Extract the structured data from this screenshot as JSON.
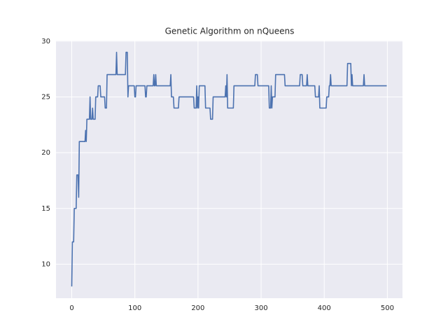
{
  "chart_data": {
    "type": "line",
    "title": "Genetic Algorithm on nQueens",
    "x": [
      0,
      1,
      3,
      4,
      7,
      8,
      10,
      11,
      12,
      21,
      22,
      23,
      24,
      28,
      29,
      30,
      32,
      33,
      34,
      37,
      38,
      41,
      42,
      45,
      46,
      52,
      53,
      55,
      56,
      70,
      71,
      72,
      85,
      86,
      88,
      89,
      90,
      99,
      100,
      101,
      102,
      116,
      117,
      118,
      119,
      129,
      130,
      131,
      132,
      133,
      134,
      156,
      157,
      158,
      161,
      162,
      169,
      170,
      193,
      194,
      197,
      198,
      199,
      200,
      201,
      202,
      211,
      212,
      219,
      220,
      223,
      224,
      243,
      244,
      245,
      246,
      247,
      256,
      257,
      290,
      291,
      294,
      295,
      312,
      313,
      315,
      316,
      317,
      318,
      322,
      323,
      337,
      338,
      361,
      362,
      365,
      366,
      372,
      373,
      374,
      385,
      386,
      391,
      392,
      393,
      403,
      404,
      407,
      408,
      409,
      410,
      411,
      436,
      437,
      442,
      443,
      444,
      445,
      462,
      463,
      464,
      499
    ],
    "values": [
      8,
      12,
      12,
      15,
      15,
      18,
      18,
      16,
      21,
      21,
      22,
      21,
      23,
      23,
      25,
      23,
      23,
      24,
      23,
      23,
      25,
      25,
      26,
      26,
      25,
      25,
      24,
      24,
      27,
      27,
      29,
      27,
      27,
      29,
      29,
      25,
      26,
      26,
      25,
      25,
      26,
      26,
      25,
      25,
      26,
      26,
      27,
      26,
      26,
      27,
      26,
      26,
      27,
      25,
      25,
      24,
      24,
      25,
      25,
      24,
      24,
      26,
      24,
      25,
      24,
      26,
      26,
      24,
      24,
      23,
      23,
      25,
      25,
      26,
      25,
      27,
      24,
      24,
      26,
      26,
      27,
      27,
      26,
      26,
      24,
      24,
      26,
      24,
      25,
      25,
      27,
      27,
      26,
      26,
      27,
      27,
      26,
      26,
      27,
      26,
      26,
      25,
      25,
      26,
      24,
      24,
      25,
      25,
      26,
      26,
      27,
      26,
      26,
      28,
      28,
      26,
      27,
      26,
      26,
      27,
      26,
      26
    ],
    "color": "#4c72b0",
    "xlim": [
      -24.95,
      523.95
    ],
    "xticks": [
      0,
      100,
      200,
      300,
      400,
      500
    ],
    "ylim": [
      6.95,
      30.05
    ],
    "yticks": [
      10,
      15,
      20,
      25,
      30
    ],
    "grid": true
  }
}
